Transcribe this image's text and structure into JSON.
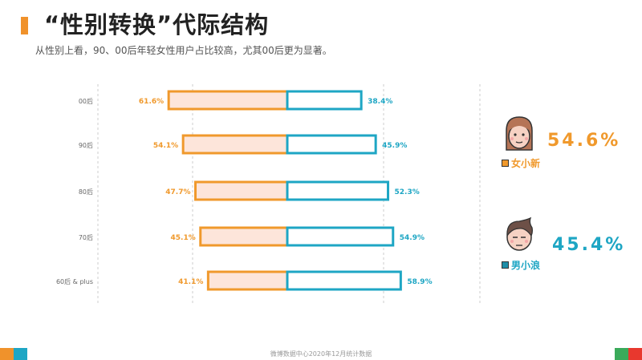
{
  "header": {
    "title": "“性别转换”代际结构",
    "subtitle": "从性别上看，90、00后年轻女性用户占比较高，尤其00后更为显著。"
  },
  "colors": {
    "female": "#f0992c",
    "female_fill": "#fde5da",
    "male": "#1ea6c4",
    "accent_orange": "#f0922b",
    "accent_blue": "#1ea6c4",
    "accent_green": "#3aaa5a",
    "accent_red": "#e8382e"
  },
  "chart_data": {
    "type": "bar",
    "orientation": "horizontal-diverging",
    "categories": [
      "00后",
      "90后",
      "80后",
      "70后",
      "60后 & plus"
    ],
    "series": [
      {
        "name": "女小新",
        "values": [
          61.6,
          54.1,
          47.7,
          45.1,
          41.1
        ],
        "labels": [
          "61.6%",
          "54.1%",
          "47.7%",
          "45.1%",
          "41.1%"
        ]
      },
      {
        "name": "男小浪",
        "values": [
          38.4,
          45.9,
          52.3,
          54.9,
          58.9
        ],
        "labels": [
          "38.4%",
          "45.9%",
          "52.3%",
          "54.9%",
          "58.9%"
        ]
      }
    ],
    "xlim": [
      -100,
      100
    ],
    "grid": true
  },
  "summary": {
    "female": {
      "label": "女小新",
      "value": "54.6%"
    },
    "male": {
      "label": "男小浪",
      "value": "45.4%"
    }
  },
  "footer": {
    "source": "微博数据中心2020年12月统计数据"
  }
}
